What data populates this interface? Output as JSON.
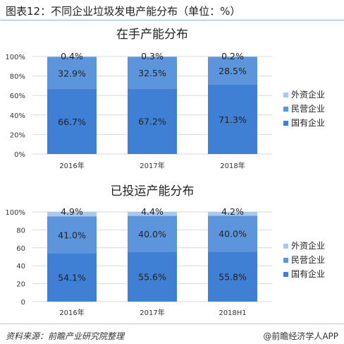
{
  "page_title": "图表12：不同企业垃圾发电产能分布（单位：%）",
  "source": "资料来源：前瞻产业研究院整理",
  "brand": "@前瞻经济学人APP",
  "colors": {
    "state": "#3f7fd4",
    "private": "#5d95dc",
    "foreign": "#a8c8ee",
    "grid": "#d9d9d9",
    "text": "#333333"
  },
  "chart_data": [
    {
      "type": "bar",
      "stacked": true,
      "title": "在手产能分布",
      "categories": [
        "2016年",
        "2017年",
        "2018年"
      ],
      "yticks": [
        "0%",
        "20%",
        "40%",
        "60%",
        "80%",
        "100%"
      ],
      "ylim": [
        0,
        100
      ],
      "legend_position": "right",
      "series": [
        {
          "name": "国有企业",
          "values": [
            66.7,
            67.2,
            71.3
          ],
          "labels": [
            "66.7%",
            "67.2%",
            "71.3%"
          ]
        },
        {
          "name": "民营企业",
          "values": [
            32.9,
            32.5,
            28.5
          ],
          "labels": [
            "32.9%",
            "32.5%",
            "28.5%"
          ]
        },
        {
          "name": "外资企业",
          "values": [
            0.4,
            0.3,
            0.2
          ],
          "labels": [
            "0.4%",
            "0.3%",
            "0.2%"
          ]
        }
      ]
    },
    {
      "type": "bar",
      "stacked": true,
      "title": "已投运产能分布",
      "categories": [
        "2016年",
        "2017年",
        "2018H1"
      ],
      "yticks": [
        "0",
        "20",
        "40",
        "60",
        "80",
        "100%"
      ],
      "ylim": [
        0,
        100
      ],
      "legend_position": "right",
      "series": [
        {
          "name": "国有企业",
          "values": [
            54.1,
            55.6,
            55.8
          ],
          "labels": [
            "54.1%",
            "55.6%",
            "55.8%"
          ]
        },
        {
          "name": "民营企业",
          "values": [
            41.0,
            40.0,
            40.0
          ],
          "labels": [
            "41.0%",
            "40.0%",
            "40.0%"
          ]
        },
        {
          "name": "外资企业",
          "values": [
            4.9,
            4.4,
            4.2
          ],
          "labels": [
            "4.9%",
            "4.4%",
            "4.2%"
          ]
        }
      ]
    }
  ]
}
